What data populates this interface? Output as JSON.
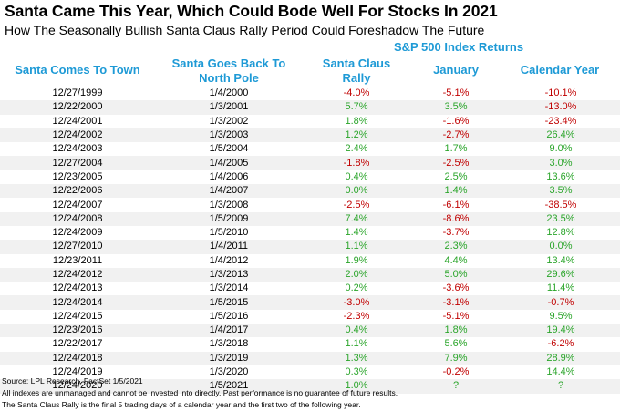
{
  "title": "Santa Came This Year, Which Could Bode Well For Stocks In 2021",
  "subtitle": "How The Seasonally Bullish Santa Claus Rally Period Could Foreshadow The Future",
  "group_header": "S&P 500 Index Returns",
  "columns": {
    "start": "Santa Comes To Town",
    "end_line1": "Santa Goes Back To",
    "end_line2": "North Pole",
    "rally_line1": "Santa Claus",
    "rally_line2": "Rally",
    "january": "January",
    "calendar": "Calendar Year"
  },
  "rows": [
    {
      "start": "12/27/1999",
      "end": "1/4/2000",
      "rally": "-4.0%",
      "january": "-5.1%",
      "calendar": "-10.1%"
    },
    {
      "start": "12/22/2000",
      "end": "1/3/2001",
      "rally": "5.7%",
      "january": "3.5%",
      "calendar": "-13.0%"
    },
    {
      "start": "12/24/2001",
      "end": "1/3/2002",
      "rally": "1.8%",
      "january": "-1.6%",
      "calendar": "-23.4%"
    },
    {
      "start": "12/24/2002",
      "end": "1/3/2003",
      "rally": "1.2%",
      "january": "-2.7%",
      "calendar": "26.4%"
    },
    {
      "start": "12/24/2003",
      "end": "1/5/2004",
      "rally": "2.4%",
      "january": "1.7%",
      "calendar": "9.0%"
    },
    {
      "start": "12/27/2004",
      "end": "1/4/2005",
      "rally": "-1.8%",
      "january": "-2.5%",
      "calendar": "3.0%"
    },
    {
      "start": "12/23/2005",
      "end": "1/4/2006",
      "rally": "0.4%",
      "january": "2.5%",
      "calendar": "13.6%"
    },
    {
      "start": "12/22/2006",
      "end": "1/4/2007",
      "rally": "0.0%",
      "january": "1.4%",
      "calendar": "3.5%"
    },
    {
      "start": "12/24/2007",
      "end": "1/3/2008",
      "rally": "-2.5%",
      "january": "-6.1%",
      "calendar": "-38.5%"
    },
    {
      "start": "12/24/2008",
      "end": "1/5/2009",
      "rally": "7.4%",
      "january": "-8.6%",
      "calendar": "23.5%"
    },
    {
      "start": "12/24/2009",
      "end": "1/5/2010",
      "rally": "1.4%",
      "january": "-3.7%",
      "calendar": "12.8%"
    },
    {
      "start": "12/27/2010",
      "end": "1/4/2011",
      "rally": "1.1%",
      "january": "2.3%",
      "calendar": "0.0%"
    },
    {
      "start": "12/23/2011",
      "end": "1/4/2012",
      "rally": "1.9%",
      "january": "4.4%",
      "calendar": "13.4%"
    },
    {
      "start": "12/24/2012",
      "end": "1/3/2013",
      "rally": "2.0%",
      "january": "5.0%",
      "calendar": "29.6%"
    },
    {
      "start": "12/24/2013",
      "end": "1/3/2014",
      "rally": "0.2%",
      "january": "-3.6%",
      "calendar": "11.4%"
    },
    {
      "start": "12/24/2014",
      "end": "1/5/2015",
      "rally": "-3.0%",
      "january": "-3.1%",
      "calendar": "-0.7%"
    },
    {
      "start": "12/24/2015",
      "end": "1/5/2016",
      "rally": "-2.3%",
      "january": "-5.1%",
      "calendar": "9.5%"
    },
    {
      "start": "12/23/2016",
      "end": "1/4/2017",
      "rally": "0.4%",
      "january": "1.8%",
      "calendar": "19.4%"
    },
    {
      "start": "12/22/2017",
      "end": "1/3/2018",
      "rally": "1.1%",
      "january": "5.6%",
      "calendar": "-6.2%"
    },
    {
      "start": "12/24/2018",
      "end": "1/3/2019",
      "rally": "1.3%",
      "january": "7.9%",
      "calendar": "28.9%"
    },
    {
      "start": "12/24/2019",
      "end": "1/3/2020",
      "rally": "0.3%",
      "january": "-0.2%",
      "calendar": "14.4%"
    },
    {
      "start": "12/24/2020",
      "end": "1/5/2021",
      "rally": "1.0%",
      "january": "?",
      "calendar": "?"
    }
  ],
  "footnotes": {
    "source": "Source: LPL Research, FactSet 1/5/2021",
    "disclaimer": "All indexes are unmanaged and cannot be invested into directly. Past performance is no guarantee of future results.",
    "definition": "The Santa Claus Rally is the final 5 trading days of a calendar year and the first two of the following year."
  },
  "colors": {
    "header_blue": "#1E9AD6",
    "negative_red": "#C00000",
    "positive_green": "#2BA52B",
    "stripe_gray": "#f1f1f1"
  }
}
